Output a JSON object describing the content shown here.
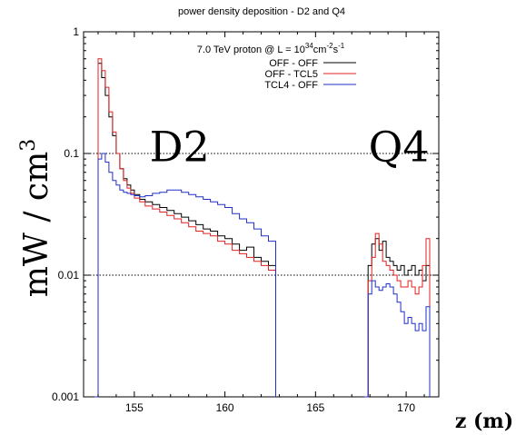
{
  "chart_data": {
    "type": "line",
    "title": "power density deposition - D2 and Q4",
    "subtitle_prefix": "7.0 TeV proton @ L = 10",
    "subtitle_exp1": "34",
    "subtitle_mid": "cm",
    "subtitle_exp2": "-2",
    "subtitle_mid2": "s",
    "subtitle_exp3": "-1",
    "xlabel": "z (m)",
    "ylabel": "mW / cm",
    "ylabel_exp": "3",
    "xlim": [
      152.2,
      171.8
    ],
    "ylim": [
      0.001,
      1
    ],
    "yscale": "log",
    "grid": false,
    "legend_position": "top-center",
    "x_ticks": [
      155,
      160,
      165,
      170
    ],
    "x_tick_labels": [
      "155",
      "160",
      "165",
      "170"
    ],
    "y_ticks": [
      0.001,
      0.01,
      0.1,
      1
    ],
    "y_tick_labels": [
      "0.001",
      "0.01",
      "0.1",
      "1"
    ],
    "reference_lines": [
      0.1,
      0.01
    ],
    "annotations": [
      {
        "text": "D2",
        "x": 157.5,
        "y": 0.11
      },
      {
        "text": "Q4",
        "x": 169.6,
        "y": 0.11
      }
    ],
    "series": [
      {
        "name": "OFF - OFF",
        "color": "#000000",
        "segments": [
          {
            "x": [
              152.8,
              153.0,
              153.2,
              153.4,
              153.6,
              153.8,
              154.0,
              154.2,
              154.4,
              154.6,
              154.8,
              155.0,
              155.3,
              155.6,
              156.0,
              156.4,
              156.8,
              157.2,
              157.6,
              158.0,
              158.4,
              158.8,
              159.2,
              159.6,
              160.0,
              160.4,
              160.8,
              161.2,
              161.6,
              162.0,
              162.4,
              162.8
            ],
            "y": [
              0.001,
              0.55,
              0.42,
              0.3,
              0.2,
              0.14,
              0.1,
              0.075,
              0.062,
              0.055,
              0.05,
              0.046,
              0.042,
              0.04,
              0.038,
              0.036,
              0.034,
              0.032,
              0.03,
              0.028,
              0.026,
              0.024,
              0.023,
              0.021,
              0.02,
              0.018,
              0.016,
              0.017,
              0.014,
              0.013,
              0.012,
              0.001
            ]
          },
          {
            "x": [
              167.7,
              167.9,
              168.1,
              168.3,
              168.5,
              168.7,
              168.9,
              169.1,
              169.3,
              169.5,
              169.7,
              169.9,
              170.1,
              170.3,
              170.5,
              170.7,
              170.9,
              171.1,
              171.3
            ],
            "y": [
              0.001,
              0.012,
              0.018,
              0.02,
              0.016,
              0.019,
              0.014,
              0.013,
              0.012,
              0.011,
              0.012,
              0.01,
              0.011,
              0.012,
              0.01,
              0.011,
              0.009,
              0.012,
              0.001
            ]
          }
        ]
      },
      {
        "name": "OFF - TCL5",
        "color": "#e02020",
        "segments": [
          {
            "x": [
              152.8,
              153.0,
              153.2,
              153.4,
              153.6,
              153.8,
              154.0,
              154.2,
              154.4,
              154.6,
              154.8,
              155.0,
              155.3,
              155.6,
              156.0,
              156.4,
              156.8,
              157.2,
              157.6,
              158.0,
              158.4,
              158.8,
              159.2,
              159.6,
              160.0,
              160.4,
              160.8,
              161.2,
              161.6,
              162.0,
              162.4,
              162.8
            ],
            "y": [
              0.001,
              0.6,
              0.48,
              0.35,
              0.22,
              0.15,
              0.1,
              0.075,
              0.06,
              0.052,
              0.047,
              0.043,
              0.04,
              0.037,
              0.035,
              0.033,
              0.031,
              0.029,
              0.027,
              0.025,
              0.023,
              0.022,
              0.021,
              0.019,
              0.018,
              0.016,
              0.015,
              0.014,
              0.013,
              0.012,
              0.011,
              0.001
            ]
          },
          {
            "x": [
              167.7,
              167.9,
              168.1,
              168.3,
              168.5,
              168.7,
              168.9,
              169.1,
              169.3,
              169.5,
              169.7,
              169.9,
              170.1,
              170.3,
              170.5,
              170.7,
              170.9,
              171.1,
              171.3
            ],
            "y": [
              0.001,
              0.009,
              0.014,
              0.022,
              0.018,
              0.013,
              0.012,
              0.011,
              0.01,
              0.009,
              0.008,
              0.008,
              0.009,
              0.008,
              0.007,
              0.008,
              0.012,
              0.02,
              0.001
            ]
          }
        ]
      },
      {
        "name": "TCL4 - OFF",
        "color": "#2030c8",
        "segments": [
          {
            "x": [
              152.8,
              153.0,
              153.2,
              153.4,
              153.6,
              153.8,
              154.0,
              154.2,
              154.4,
              154.6,
              154.8,
              155.0,
              155.3,
              155.6,
              156.0,
              156.4,
              156.8,
              157.2,
              157.6,
              158.0,
              158.4,
              158.8,
              159.2,
              159.6,
              160.0,
              160.4,
              160.8,
              161.2,
              161.6,
              162.0,
              162.4,
              162.8
            ],
            "y": [
              0.001,
              0.09,
              0.1,
              0.085,
              0.07,
              0.06,
              0.055,
              0.05,
              0.048,
              0.047,
              0.046,
              0.045,
              0.044,
              0.045,
              0.047,
              0.048,
              0.05,
              0.05,
              0.048,
              0.046,
              0.044,
              0.042,
              0.04,
              0.038,
              0.036,
              0.032,
              0.029,
              0.027,
              0.024,
              0.021,
              0.019,
              0.001
            ]
          },
          {
            "x": [
              167.7,
              167.9,
              168.1,
              168.3,
              168.5,
              168.7,
              168.9,
              169.1,
              169.3,
              169.5,
              169.7,
              169.9,
              170.1,
              170.3,
              170.5,
              170.7,
              170.9,
              171.1,
              171.3
            ],
            "y": [
              0.001,
              0.007,
              0.009,
              0.008,
              0.0075,
              0.008,
              0.0085,
              0.008,
              0.007,
              0.006,
              0.005,
              0.004,
              0.0045,
              0.004,
              0.0035,
              0.004,
              0.0035,
              0.0055,
              0.001
            ]
          }
        ]
      }
    ]
  }
}
